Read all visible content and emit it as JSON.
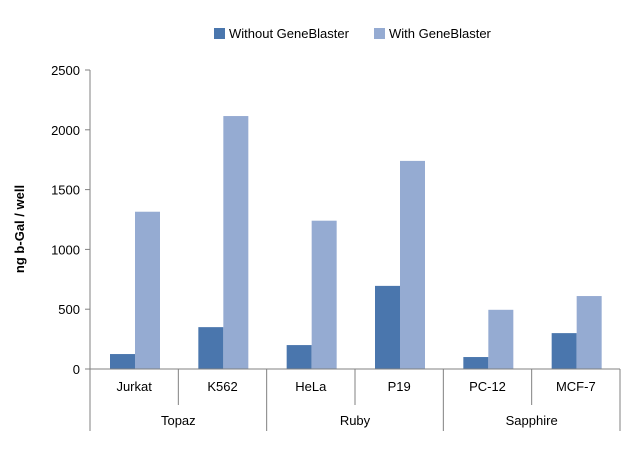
{
  "chart_data": {
    "type": "bar",
    "title": "",
    "xlabel": "",
    "ylabel": "ng b-Gal / well",
    "ylim": [
      0,
      2500
    ],
    "yticks": [
      "0",
      "500",
      "1000",
      "1500",
      "2000",
      "2500"
    ],
    "grid": false,
    "legend_position": "top",
    "categories": [
      "Jurkat",
      "K562",
      "HeLa",
      "P19",
      "PC-12",
      "MCF-7"
    ],
    "groups": [
      {
        "label": "Topaz",
        "categories": [
          "Jurkat",
          "K562"
        ]
      },
      {
        "label": "Ruby",
        "categories": [
          "HeLa",
          "P19"
        ]
      },
      {
        "label": "Sapphire",
        "categories": [
          "PC-12",
          "MCF-7"
        ]
      }
    ],
    "series": [
      {
        "name": "Without GeneBlaster",
        "color": "#4A76AD",
        "values": [
          125,
          350,
          200,
          695,
          100,
          300
        ]
      },
      {
        "name": "With GeneBlaster",
        "color": "#95ABD2",
        "values": [
          1315,
          2115,
          1240,
          1740,
          495,
          610
        ]
      }
    ]
  }
}
